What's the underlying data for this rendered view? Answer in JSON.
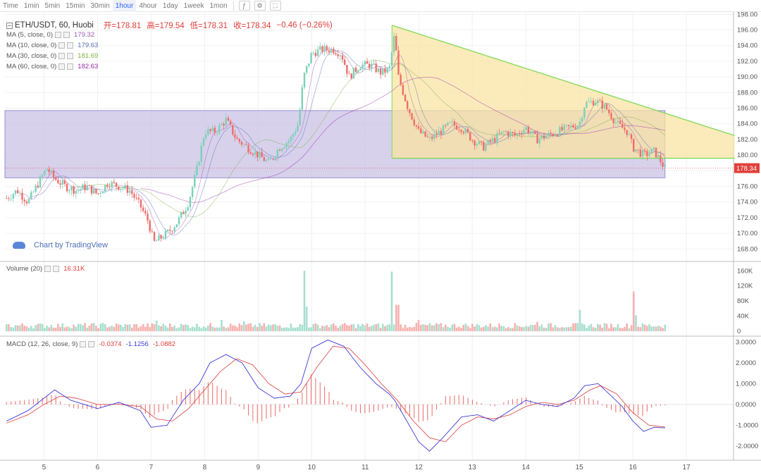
{
  "toolbar": {
    "items": [
      {
        "label": "Time",
        "active": false
      },
      {
        "label": "1min",
        "active": false
      },
      {
        "label": "5min",
        "active": false
      },
      {
        "label": "15min",
        "active": false
      },
      {
        "label": "30min",
        "active": false
      },
      {
        "label": "1hour",
        "active": true
      },
      {
        "label": "4hour",
        "active": false
      },
      {
        "label": "1day",
        "active": false
      },
      {
        "label": "1week",
        "active": false
      },
      {
        "label": "1mon",
        "active": false
      }
    ],
    "icons": [
      "indicator-icon",
      "settings-icon",
      "fullscreen-icon"
    ]
  },
  "symbol": {
    "title": "ETH/USDT, 60, Huobi",
    "open_label": "开",
    "open": "178.81",
    "high_label": "高",
    "high": "179.54",
    "low_label": "低",
    "low": "178.31",
    "close_label": "收",
    "close": "178.34",
    "change": "−0.46 (−0.26%)",
    "price_tag": "178.34"
  },
  "ma_legends": [
    {
      "label": "MA (5, close, 0)",
      "value": "179.32",
      "color": "#9b59b6"
    },
    {
      "label": "MA (10, close, 0)",
      "value": "179.63",
      "color": "#5a6fb8"
    },
    {
      "label": "MA (30, close, 0)",
      "value": "181.69",
      "color": "#7cb342"
    },
    {
      "label": "MA (60, close, 0)",
      "value": "182.63",
      "color": "#9c27b0"
    }
  ],
  "volume_legend": {
    "label": "Volume (20)",
    "value": "16.31K"
  },
  "macd_legend": {
    "label": "MACD (12, 26, close, 9)",
    "hist": "-0.0374",
    "macd": "-1.1256",
    "signal": "-1.0882"
  },
  "watermark": "Chart by TradingView",
  "colors": {
    "up": "#7cd0b8",
    "down": "#ef6d6a",
    "up_vol": "#a7dfcf",
    "down_vol": "#f6b1ae",
    "zone_fill": "#c9c2e6",
    "triangle_fill": "#fbe3a0",
    "triangle_line": "#7fd957",
    "macd_line": "#3d3dd6",
    "signal_line": "#e05050",
    "price_tag": "#e0403a"
  },
  "chart_data": [
    {
      "type": "candlestick",
      "x_ticks": [
        "5",
        "6",
        "7",
        "8",
        "9",
        "10",
        "11",
        "12",
        "13",
        "14",
        "15",
        "16",
        "17"
      ],
      "y_ticks": [
        "198.00",
        "196.00",
        "194.00",
        "192.00",
        "190.00",
        "188.00",
        "186.00",
        "184.00",
        "182.00",
        "180.00",
        "178.00",
        "176.00",
        "174.00",
        "172.00",
        "170.00",
        "168.00"
      ],
      "ylim": [
        166.5,
        198.3
      ],
      "xlim": [
        4.27,
        17.88
      ],
      "close_path": [
        [
          4.3,
          174.5
        ],
        [
          4.5,
          175.5
        ],
        [
          4.7,
          174
        ],
        [
          4.9,
          176.5
        ],
        [
          5.05,
          178.3
        ],
        [
          5.2,
          177
        ],
        [
          5.4,
          176
        ],
        [
          5.6,
          175.5
        ],
        [
          5.8,
          176
        ],
        [
          6.0,
          175
        ],
        [
          6.2,
          176.5
        ],
        [
          6.4,
          176
        ],
        [
          6.6,
          175.5
        ],
        [
          6.8,
          173.5
        ],
        [
          6.95,
          171.5
        ],
        [
          7.05,
          168.8
        ],
        [
          7.3,
          170
        ],
        [
          7.5,
          171.5
        ],
        [
          7.7,
          174
        ],
        [
          7.85,
          178
        ],
        [
          8.0,
          183
        ],
        [
          8.2,
          183
        ],
        [
          8.4,
          184.5
        ],
        [
          8.6,
          182
        ],
        [
          8.8,
          181
        ],
        [
          9.0,
          180
        ],
        [
          9.2,
          179
        ],
        [
          9.4,
          181
        ],
        [
          9.6,
          182
        ],
        [
          9.75,
          184
        ],
        [
          9.85,
          190
        ],
        [
          10.0,
          193
        ],
        [
          10.2,
          193.5
        ],
        [
          10.4,
          193.5
        ],
        [
          10.55,
          193
        ],
        [
          10.7,
          190
        ],
        [
          10.9,
          191.5
        ],
        [
          11.1,
          191.5
        ],
        [
          11.3,
          190.5
        ],
        [
          11.45,
          191
        ],
        [
          11.55,
          195.5
        ],
        [
          11.62,
          190
        ],
        [
          11.8,
          186
        ],
        [
          12.0,
          183
        ],
        [
          12.2,
          182
        ],
        [
          12.4,
          183
        ],
        [
          12.6,
          184
        ],
        [
          12.8,
          183.5
        ],
        [
          13.0,
          182
        ],
        [
          13.2,
          181
        ],
        [
          13.4,
          182
        ],
        [
          13.6,
          183
        ],
        [
          13.8,
          182.5
        ],
        [
          14.0,
          183.5
        ],
        [
          14.2,
          182
        ],
        [
          14.4,
          182.5
        ],
        [
          14.6,
          183
        ],
        [
          14.8,
          183.5
        ],
        [
          15.0,
          184
        ],
        [
          15.1,
          186.5
        ],
        [
          15.3,
          187
        ],
        [
          15.5,
          186
        ],
        [
          15.7,
          184
        ],
        [
          15.9,
          183
        ],
        [
          16.0,
          181
        ],
        [
          16.2,
          180
        ],
        [
          16.4,
          180.5
        ],
        [
          16.6,
          178.34
        ]
      ],
      "ma_periods": [
        5,
        10,
        30,
        60
      ],
      "range_zone": {
        "x0": 4.27,
        "x1": 16.6,
        "y0": 177.1,
        "y1": 185.7
      },
      "triangle": {
        "apex": [
          11.5,
          196.6
        ],
        "right_top": [
          17.9,
          182.5
        ],
        "right_bottom": [
          17.9,
          179.6
        ],
        "base_y": 179.6
      },
      "last_price": 178.34
    },
    {
      "type": "bar",
      "name": "Volume",
      "y_ticks": [
        "160K",
        "120K",
        "80K",
        "40K",
        "0"
      ],
      "ylim": [
        0,
        168
      ],
      "spikes": [
        [
          6.1,
          22
        ],
        [
          7.1,
          28
        ],
        [
          8.3,
          30
        ],
        [
          8.75,
          26
        ],
        [
          9.85,
          160
        ],
        [
          9.9,
          65
        ],
        [
          11.5,
          158
        ],
        [
          11.6,
          70
        ],
        [
          12.0,
          30
        ],
        [
          14.2,
          25
        ],
        [
          15.0,
          57
        ],
        [
          16.0,
          105
        ],
        [
          16.05,
          42
        ]
      ],
      "base_level": 8
    },
    {
      "type": "line",
      "name": "MACD",
      "y_ticks": [
        "3.0000",
        "2.0000",
        "1.0000",
        "0.0000",
        "-1.0000",
        "-2.0000"
      ],
      "ylim": [
        -2.65,
        3.25
      ],
      "macd": [
        [
          4.3,
          -0.8
        ],
        [
          4.7,
          -0.3
        ],
        [
          5.0,
          0.3
        ],
        [
          5.2,
          0.7
        ],
        [
          5.5,
          0.2
        ],
        [
          6.0,
          -0.2
        ],
        [
          6.4,
          0.1
        ],
        [
          6.8,
          -0.3
        ],
        [
          7.0,
          -1.1
        ],
        [
          7.3,
          -1.0
        ],
        [
          7.6,
          0.2
        ],
        [
          7.9,
          1.0
        ],
        [
          8.1,
          2.0
        ],
        [
          8.4,
          2.4
        ],
        [
          8.7,
          2.0
        ],
        [
          9.0,
          0.8
        ],
        [
          9.3,
          0.3
        ],
        [
          9.6,
          0.4
        ],
        [
          9.8,
          1.0
        ],
        [
          10.0,
          2.7
        ],
        [
          10.3,
          3.1
        ],
        [
          10.6,
          2.8
        ],
        [
          10.9,
          1.8
        ],
        [
          11.2,
          1.0
        ],
        [
          11.45,
          0.5
        ],
        [
          11.55,
          0.2
        ],
        [
          11.8,
          -0.9
        ],
        [
          12.0,
          -1.8
        ],
        [
          12.2,
          -2.25
        ],
        [
          12.45,
          -1.6
        ],
        [
          12.8,
          -0.6
        ],
        [
          13.1,
          -0.5
        ],
        [
          13.4,
          -0.8
        ],
        [
          13.7,
          -0.3
        ],
        [
          14.0,
          0.2
        ],
        [
          14.3,
          0.0
        ],
        [
          14.6,
          -0.1
        ],
        [
          14.9,
          0.3
        ],
        [
          15.1,
          0.9
        ],
        [
          15.35,
          1.0
        ],
        [
          15.6,
          0.4
        ],
        [
          15.8,
          -0.1
        ],
        [
          16.0,
          -0.8
        ],
        [
          16.2,
          -1.3
        ],
        [
          16.4,
          -1.1
        ],
        [
          16.6,
          -1.13
        ]
      ],
      "signal": [
        [
          4.3,
          -0.9
        ],
        [
          4.7,
          -0.5
        ],
        [
          5.0,
          0.0
        ],
        [
          5.3,
          0.4
        ],
        [
          5.6,
          0.3
        ],
        [
          6.0,
          0.0
        ],
        [
          6.4,
          0.0
        ],
        [
          6.8,
          -0.1
        ],
        [
          7.1,
          -0.7
        ],
        [
          7.4,
          -0.8
        ],
        [
          7.7,
          -0.2
        ],
        [
          8.0,
          0.7
        ],
        [
          8.3,
          1.6
        ],
        [
          8.6,
          2.2
        ],
        [
          8.9,
          1.9
        ],
        [
          9.2,
          1.0
        ],
        [
          9.5,
          0.5
        ],
        [
          9.8,
          0.6
        ],
        [
          10.1,
          1.8
        ],
        [
          10.4,
          2.8
        ],
        [
          10.7,
          2.7
        ],
        [
          11.0,
          1.9
        ],
        [
          11.3,
          1.0
        ],
        [
          11.6,
          0.2
        ],
        [
          11.9,
          -0.8
        ],
        [
          12.2,
          -1.6
        ],
        [
          12.5,
          -1.8
        ],
        [
          12.8,
          -1.0
        ],
        [
          13.1,
          -0.6
        ],
        [
          13.4,
          -0.7
        ],
        [
          13.7,
          -0.5
        ],
        [
          14.0,
          -0.1
        ],
        [
          14.3,
          0.1
        ],
        [
          14.6,
          0.0
        ],
        [
          14.9,
          0.2
        ],
        [
          15.2,
          0.7
        ],
        [
          15.4,
          0.9
        ],
        [
          15.7,
          0.5
        ],
        [
          16.0,
          -0.4
        ],
        [
          16.3,
          -1.0
        ],
        [
          16.6,
          -1.09
        ]
      ]
    }
  ]
}
